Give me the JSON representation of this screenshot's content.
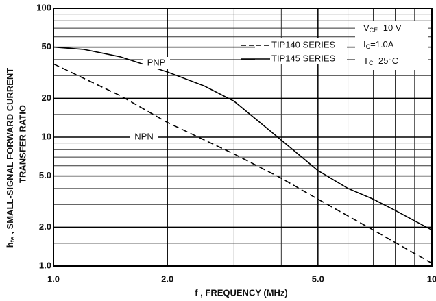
{
  "chart_data": {
    "type": "line",
    "log_x": true,
    "log_y": true,
    "grid": true,
    "ylabel": [
      "h",
      "fe",
      " , SMALL-SIGNAL FORWARD CURRENT"
    ],
    "ylabel2": "TRANSFER  RATIO",
    "xlabel": "f , FREQUENCY (MHz)",
    "xlim": [
      1,
      10
    ],
    "ylim": [
      1,
      100
    ],
    "xticks": [
      {
        "value": 1,
        "label": "1.0"
      },
      {
        "value": 2,
        "label": "2.0"
      },
      {
        "value": 5,
        "label": "5.0"
      },
      10
    ],
    "yticks": [
      {
        "value": 1,
        "label": "1.0"
      },
      {
        "value": 2,
        "label": "2.0"
      },
      {
        "value": 5,
        "label": "5.0"
      },
      10,
      20,
      50,
      100
    ],
    "xgrid": [
      3,
      4,
      6,
      7,
      8,
      9
    ],
    "ygrid": [
      1.5,
      3,
      4,
      6,
      7,
      8,
      9,
      15,
      30,
      40,
      60,
      70,
      80,
      90
    ],
    "series": [
      {
        "name": "PNP",
        "legend": "TIP145 SERIES",
        "dash": false,
        "color": "#000000",
        "x": [
          1,
          1.2,
          1.5,
          2,
          2.5,
          3,
          4,
          5,
          6,
          7,
          8,
          10
        ],
        "values": [
          50,
          48,
          42,
          32,
          25,
          19,
          9.5,
          5.5,
          4.0,
          3.3,
          2.7,
          1.9
        ]
      },
      {
        "name": "NPN",
        "legend": "TIP140 SERIES",
        "dash": true,
        "color": "#000000",
        "x": [
          1,
          1.5,
          2,
          3,
          4,
          5,
          7,
          10
        ],
        "values": [
          37,
          21,
          13,
          7.4,
          4.8,
          3.3,
          1.9,
          1.05
        ]
      }
    ],
    "conditions": [
      [
        "V",
        "CE",
        "=10 V"
      ],
      [
        "I",
        "C",
        "=1.0A"
      ],
      [
        "T",
        "C",
        "=25°C"
      ]
    ]
  }
}
